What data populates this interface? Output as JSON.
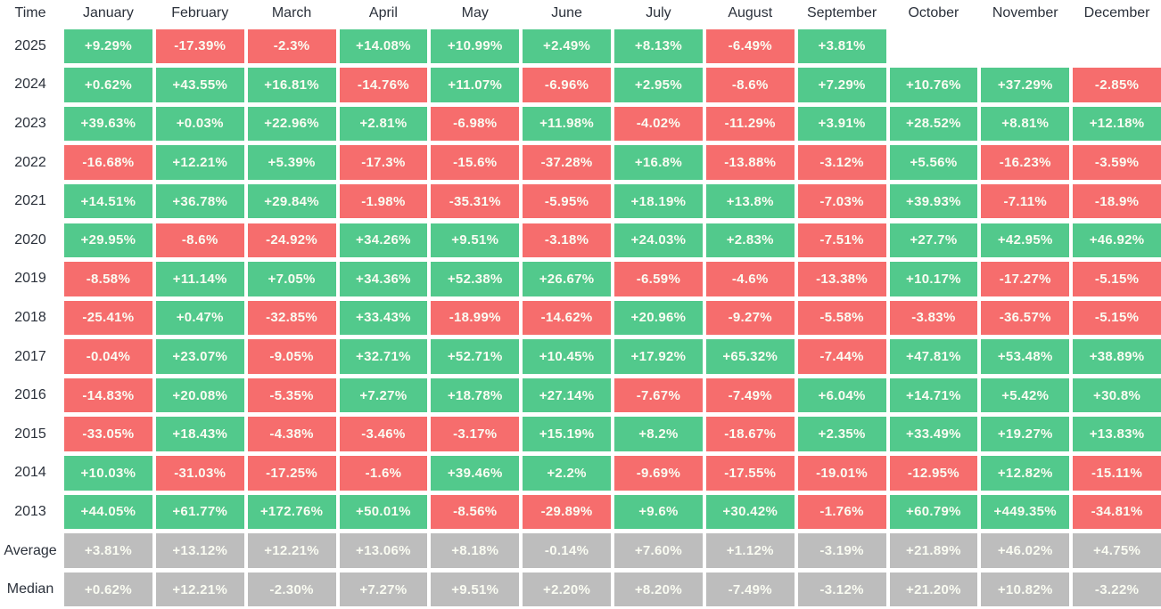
{
  "table": {
    "corner_label": "Time",
    "columns": [
      "January",
      "February",
      "March",
      "April",
      "May",
      "June",
      "July",
      "August",
      "September",
      "October",
      "November",
      "December"
    ],
    "colors": {
      "positive": "#52c98c",
      "negative": "#f66d6d",
      "summary": "#bdbdbd",
      "cell_text": "#fafcf2",
      "label_text": "#2b313b",
      "background": "#ffffff"
    },
    "rows": [
      {
        "label": "2025",
        "kind": "year",
        "cells": [
          "+9.29%",
          "-17.39%",
          "-2.3%",
          "+14.08%",
          "+10.99%",
          "+2.49%",
          "+8.13%",
          "-6.49%",
          "+3.81%",
          "",
          "",
          ""
        ]
      },
      {
        "label": "2024",
        "kind": "year",
        "cells": [
          "+0.62%",
          "+43.55%",
          "+16.81%",
          "-14.76%",
          "+11.07%",
          "-6.96%",
          "+2.95%",
          "-8.6%",
          "+7.29%",
          "+10.76%",
          "+37.29%",
          "-2.85%"
        ]
      },
      {
        "label": "2023",
        "kind": "year",
        "cells": [
          "+39.63%",
          "+0.03%",
          "+22.96%",
          "+2.81%",
          "-6.98%",
          "+11.98%",
          "-4.02%",
          "-11.29%",
          "+3.91%",
          "+28.52%",
          "+8.81%",
          "+12.18%"
        ]
      },
      {
        "label": "2022",
        "kind": "year",
        "cells": [
          "-16.68%",
          "+12.21%",
          "+5.39%",
          "-17.3%",
          "-15.6%",
          "-37.28%",
          "+16.8%",
          "-13.88%",
          "-3.12%",
          "+5.56%",
          "-16.23%",
          "-3.59%"
        ]
      },
      {
        "label": "2021",
        "kind": "year",
        "cells": [
          "+14.51%",
          "+36.78%",
          "+29.84%",
          "-1.98%",
          "-35.31%",
          "-5.95%",
          "+18.19%",
          "+13.8%",
          "-7.03%",
          "+39.93%",
          "-7.11%",
          "-18.9%"
        ]
      },
      {
        "label": "2020",
        "kind": "year",
        "cells": [
          "+29.95%",
          "-8.6%",
          "-24.92%",
          "+34.26%",
          "+9.51%",
          "-3.18%",
          "+24.03%",
          "+2.83%",
          "-7.51%",
          "+27.7%",
          "+42.95%",
          "+46.92%"
        ]
      },
      {
        "label": "2019",
        "kind": "year",
        "cells": [
          "-8.58%",
          "+11.14%",
          "+7.05%",
          "+34.36%",
          "+52.38%",
          "+26.67%",
          "-6.59%",
          "-4.6%",
          "-13.38%",
          "+10.17%",
          "-17.27%",
          "-5.15%"
        ]
      },
      {
        "label": "2018",
        "kind": "year",
        "cells": [
          "-25.41%",
          "+0.47%",
          "-32.85%",
          "+33.43%",
          "-18.99%",
          "-14.62%",
          "+20.96%",
          "-9.27%",
          "-5.58%",
          "-3.83%",
          "-36.57%",
          "-5.15%"
        ]
      },
      {
        "label": "2017",
        "kind": "year",
        "cells": [
          "-0.04%",
          "+23.07%",
          "-9.05%",
          "+32.71%",
          "+52.71%",
          "+10.45%",
          "+17.92%",
          "+65.32%",
          "-7.44%",
          "+47.81%",
          "+53.48%",
          "+38.89%"
        ]
      },
      {
        "label": "2016",
        "kind": "year",
        "cells": [
          "-14.83%",
          "+20.08%",
          "-5.35%",
          "+7.27%",
          "+18.78%",
          "+27.14%",
          "-7.67%",
          "-7.49%",
          "+6.04%",
          "+14.71%",
          "+5.42%",
          "+30.8%"
        ]
      },
      {
        "label": "2015",
        "kind": "year",
        "cells": [
          "-33.05%",
          "+18.43%",
          "-4.38%",
          "-3.46%",
          "-3.17%",
          "+15.19%",
          "+8.2%",
          "-18.67%",
          "+2.35%",
          "+33.49%",
          "+19.27%",
          "+13.83%"
        ]
      },
      {
        "label": "2014",
        "kind": "year",
        "cells": [
          "+10.03%",
          "-31.03%",
          "-17.25%",
          "-1.6%",
          "+39.46%",
          "+2.2%",
          "-9.69%",
          "-17.55%",
          "-19.01%",
          "-12.95%",
          "+12.82%",
          "-15.11%"
        ]
      },
      {
        "label": "2013",
        "kind": "year",
        "cells": [
          "+44.05%",
          "+61.77%",
          "+172.76%",
          "+50.01%",
          "-8.56%",
          "-29.89%",
          "+9.6%",
          "+30.42%",
          "-1.76%",
          "+60.79%",
          "+449.35%",
          "-34.81%"
        ]
      },
      {
        "label": "Average",
        "kind": "summary",
        "cells": [
          "+3.81%",
          "+13.12%",
          "+12.21%",
          "+13.06%",
          "+8.18%",
          "-0.14%",
          "+7.60%",
          "+1.12%",
          "-3.19%",
          "+21.89%",
          "+46.02%",
          "+4.75%"
        ]
      },
      {
        "label": "Median",
        "kind": "summary",
        "cells": [
          "+0.62%",
          "+12.21%",
          "-2.30%",
          "+7.27%",
          "+9.51%",
          "+2.20%",
          "+8.20%",
          "-7.49%",
          "-3.12%",
          "+21.20%",
          "+10.82%",
          "-3.22%"
        ]
      }
    ]
  },
  "chart_data": {
    "type": "heatmap",
    "unit": "%",
    "corner_label": "Time",
    "columns": [
      "January",
      "February",
      "March",
      "April",
      "May",
      "June",
      "July",
      "August",
      "September",
      "October",
      "November",
      "December"
    ],
    "rows": [
      {
        "label": "2025",
        "values": [
          9.29,
          -17.39,
          -2.3,
          14.08,
          10.99,
          2.49,
          8.13,
          -6.49,
          3.81,
          null,
          null,
          null
        ]
      },
      {
        "label": "2024",
        "values": [
          0.62,
          43.55,
          16.81,
          -14.76,
          11.07,
          -6.96,
          2.95,
          -8.6,
          7.29,
          10.76,
          37.29,
          -2.85
        ]
      },
      {
        "label": "2023",
        "values": [
          39.63,
          0.03,
          22.96,
          2.81,
          -6.98,
          11.98,
          -4.02,
          -11.29,
          3.91,
          28.52,
          8.81,
          12.18
        ]
      },
      {
        "label": "2022",
        "values": [
          -16.68,
          12.21,
          5.39,
          -17.3,
          -15.6,
          -37.28,
          16.8,
          -13.88,
          -3.12,
          5.56,
          -16.23,
          -3.59
        ]
      },
      {
        "label": "2021",
        "values": [
          14.51,
          36.78,
          29.84,
          -1.98,
          -35.31,
          -5.95,
          18.19,
          13.8,
          -7.03,
          39.93,
          -7.11,
          -18.9
        ]
      },
      {
        "label": "2020",
        "values": [
          29.95,
          -8.6,
          -24.92,
          34.26,
          9.51,
          -3.18,
          24.03,
          2.83,
          -7.51,
          27.7,
          42.95,
          46.92
        ]
      },
      {
        "label": "2019",
        "values": [
          -8.58,
          11.14,
          7.05,
          34.36,
          52.38,
          26.67,
          -6.59,
          -4.6,
          -13.38,
          10.17,
          -17.27,
          -5.15
        ]
      },
      {
        "label": "2018",
        "values": [
          -25.41,
          0.47,
          -32.85,
          33.43,
          -18.99,
          -14.62,
          20.96,
          -9.27,
          -5.58,
          -3.83,
          -36.57,
          -5.15
        ]
      },
      {
        "label": "2017",
        "values": [
          -0.04,
          23.07,
          -9.05,
          32.71,
          52.71,
          10.45,
          17.92,
          65.32,
          -7.44,
          47.81,
          53.48,
          38.89
        ]
      },
      {
        "label": "2016",
        "values": [
          -14.83,
          20.08,
          -5.35,
          7.27,
          18.78,
          27.14,
          -7.67,
          -7.49,
          6.04,
          14.71,
          5.42,
          30.8
        ]
      },
      {
        "label": "2015",
        "values": [
          -33.05,
          18.43,
          -4.38,
          -3.46,
          -3.17,
          15.19,
          8.2,
          -18.67,
          2.35,
          33.49,
          19.27,
          13.83
        ]
      },
      {
        "label": "2014",
        "values": [
          10.03,
          -31.03,
          -17.25,
          -1.6,
          39.46,
          2.2,
          -9.69,
          -17.55,
          -19.01,
          -12.95,
          12.82,
          -15.11
        ]
      },
      {
        "label": "2013",
        "values": [
          44.05,
          61.77,
          172.76,
          50.01,
          -8.56,
          -29.89,
          9.6,
          30.42,
          -1.76,
          60.79,
          449.35,
          -34.81
        ]
      },
      {
        "label": "Average",
        "values": [
          3.81,
          13.12,
          12.21,
          13.06,
          8.18,
          -0.14,
          7.6,
          1.12,
          -3.19,
          21.89,
          46.02,
          4.75
        ]
      },
      {
        "label": "Median",
        "values": [
          0.62,
          12.21,
          -2.3,
          7.27,
          9.51,
          2.2,
          8.2,
          -7.49,
          -3.12,
          21.2,
          10.82,
          -3.22
        ]
      }
    ]
  }
}
